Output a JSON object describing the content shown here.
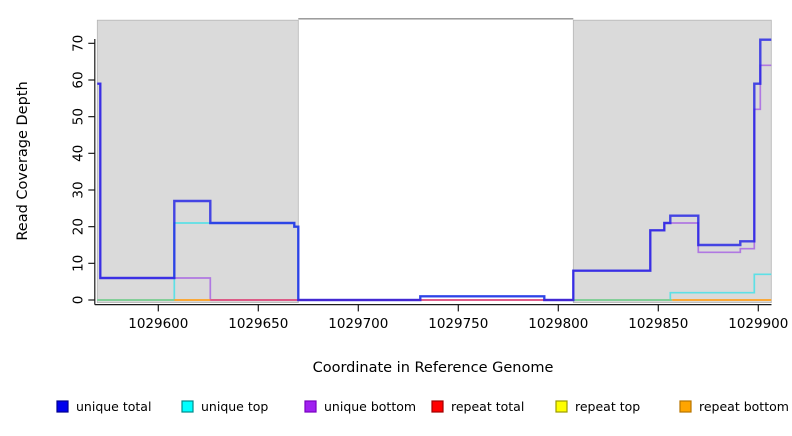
{
  "figure": {
    "xlabel": "Coordinate in Reference Genome",
    "ylabel": "Read Coverage Depth"
  },
  "chart_data": {
    "type": "line",
    "subtype": "step",
    "title": "",
    "xlabel": "Coordinate in Reference Genome",
    "ylabel": "Read Coverage Depth",
    "xlim": [
      1029569.5,
      1029906.5
    ],
    "ylim": [
      0,
      76
    ],
    "xticks": [
      1029600,
      1029650,
      1029700,
      1029750,
      1029800,
      1029850,
      1029900
    ],
    "yticks": [
      0,
      10,
      20,
      30,
      40,
      50,
      60,
      70
    ],
    "grid": false,
    "legend_position": "bottom",
    "shaded_regions": [
      {
        "x1": 1029569.5,
        "x2": 1029670.0,
        "fill": "#dadada",
        "border": "#b5b5b5"
      },
      {
        "x1": 1029807.5,
        "x2": 1029906.5,
        "fill": "#dadada",
        "border": "#b5b5b5"
      }
    ],
    "gap_top_line": {
      "x1": 1029670.0,
      "x2": 1029807.5,
      "color": "#8f8f8f"
    },
    "series": [
      {
        "name": "unique top",
        "color": "rgba(70,225,232,0.85)",
        "width": 1.7,
        "steps": [
          [
            1029569.5,
            0
          ],
          [
            1029608,
            21
          ],
          [
            1029668,
            20
          ],
          [
            1029670,
            0
          ],
          [
            1029731,
            1
          ],
          [
            1029793,
            0
          ],
          [
            1029856,
            2
          ],
          [
            1029898,
            7
          ]
        ]
      },
      {
        "name": "unique bottom",
        "color": "rgba(150,60,230,0.62)",
        "width": 1.7,
        "steps": [
          [
            1029569.5,
            59
          ],
          [
            1029571,
            6
          ],
          [
            1029626,
            0
          ],
          [
            1029807.5,
            8
          ],
          [
            1029846,
            19
          ],
          [
            1029853,
            21
          ],
          [
            1029870,
            13
          ],
          [
            1029891,
            14
          ],
          [
            1029898,
            52
          ],
          [
            1029901,
            64
          ]
        ]
      },
      {
        "name": "repeat total",
        "color": "#e1537a",
        "width": 1.7,
        "steps": [
          [
            1029569.5,
            0
          ]
        ]
      },
      {
        "name": "repeat top",
        "color": "#ffff00",
        "width": 1.7,
        "steps": [
          [
            1029569.5,
            0
          ]
        ]
      },
      {
        "name": "repeat bottom",
        "color": "#ffa020",
        "width": 1.7,
        "steps": [
          [
            1029569.5,
            0
          ]
        ]
      },
      {
        "name": "unique total",
        "color": "rgba(25,25,230,0.78)",
        "width": 2.4,
        "steps": [
          [
            1029569.5,
            59
          ],
          [
            1029571,
            6
          ],
          [
            1029608,
            27
          ],
          [
            1029626,
            21
          ],
          [
            1029668,
            20
          ],
          [
            1029670,
            0
          ],
          [
            1029731,
            1
          ],
          [
            1029793,
            0
          ],
          [
            1029807.5,
            8
          ],
          [
            1029846,
            19
          ],
          [
            1029853,
            21
          ],
          [
            1029856,
            23
          ],
          [
            1029870,
            15
          ],
          [
            1029891,
            16
          ],
          [
            1029898,
            59
          ],
          [
            1029901,
            71
          ]
        ]
      }
    ],
    "baseline_overlap_segments": [
      {
        "x1": 1029569.5,
        "x2": 1029608.0,
        "color": "#84cc8e"
      },
      {
        "x1": 1029608.0,
        "x2": 1029626.0,
        "color": "#ffa020"
      },
      {
        "x1": 1029626.0,
        "x2": 1029807.5,
        "color": "#e1537a"
      },
      {
        "x1": 1029807.5,
        "x2": 1029857.0,
        "color": "#84cc8e"
      },
      {
        "x1": 1029857.0,
        "x2": 1029906.5,
        "color": "#ffa020"
      }
    ],
    "legend": [
      {
        "label": "unique total",
        "fill": "#0000ee",
        "border": "#000090"
      },
      {
        "label": "unique top",
        "fill": "#00ffff",
        "border": "#008b8b"
      },
      {
        "label": "unique bottom",
        "fill": "#a020f0",
        "border": "#7a00c0"
      },
      {
        "label": "repeat total",
        "fill": "#ff0000",
        "border": "#a00000"
      },
      {
        "label": "repeat top",
        "fill": "#ffff00",
        "border": "#9b9b00"
      },
      {
        "label": "repeat bottom",
        "fill": "#ffa500",
        "border": "#b87400"
      }
    ]
  }
}
